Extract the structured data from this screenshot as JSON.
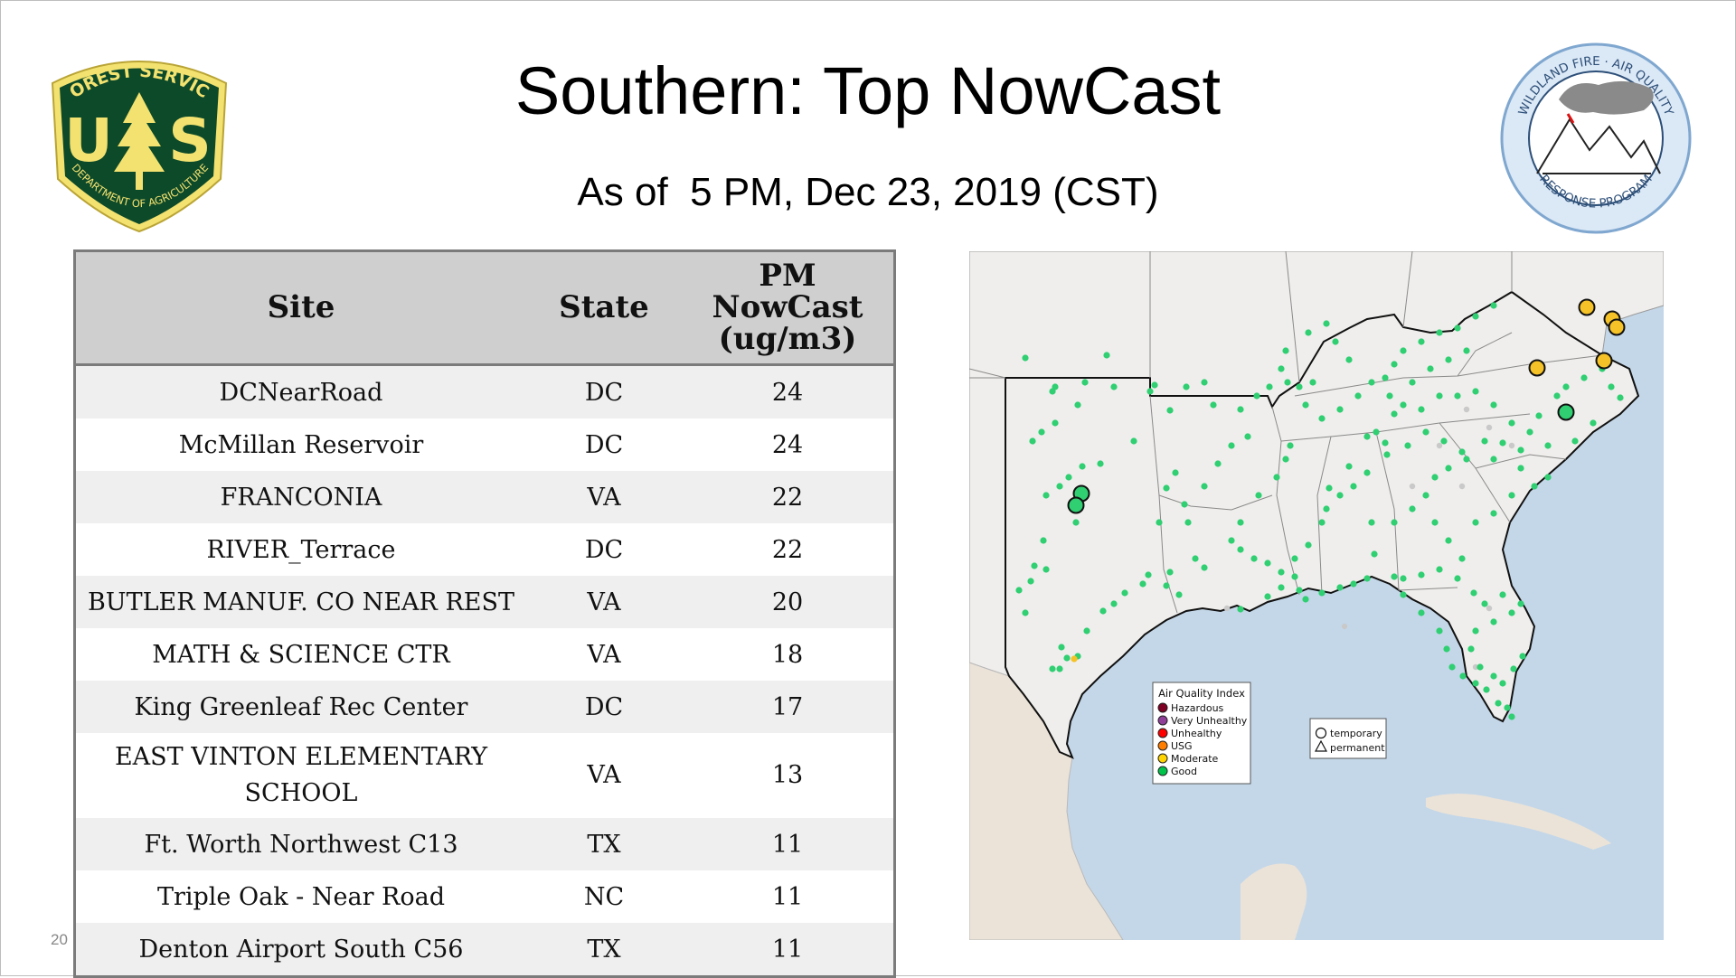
{
  "slide": {
    "title": "Southern: Top NowCast",
    "subtitle": "As of  5 PM, Dec 23, 2019 (CST)",
    "page_number": "20"
  },
  "logos": {
    "usfs": {
      "arc_top": "FOREST SERVICE",
      "letters_left": "U",
      "letters_right": "S",
      "arc_bottom": "DEPARTMENT OF AGRICULTURE",
      "colors": {
        "shield": "#0d4a2a",
        "gold": "#f3e26f"
      }
    },
    "wfaq": {
      "arc_top": "WILDLAND FIRE · AIR QUALITY",
      "arc_bottom": "RESPONSE PROGRAM",
      "colors": {
        "ring": "#9ec1e3",
        "text": "#2d4f78"
      }
    }
  },
  "table": {
    "headers": {
      "site": "Site",
      "state": "State",
      "pm_line1": "PM",
      "pm_line2": "NowCast",
      "pm_line3": "(ug/m3)"
    },
    "rows": [
      {
        "site": "DCNearRoad",
        "state": "DC",
        "value": "24"
      },
      {
        "site": "McMillan Reservoir",
        "state": "DC",
        "value": "24"
      },
      {
        "site": "FRANCONIA",
        "state": "VA",
        "value": "22"
      },
      {
        "site": "RIVER_Terrace",
        "state": "DC",
        "value": "22"
      },
      {
        "site": "BUTLER MANUF. CO NEAR REST",
        "state": "VA",
        "value": "20"
      },
      {
        "site": "MATH & SCIENCE CTR",
        "state": "VA",
        "value": "18"
      },
      {
        "site": "King Greenleaf Rec Center",
        "state": "DC",
        "value": "17"
      },
      {
        "site": "EAST VINTON ELEMENTARY",
        "site_line2": "SCHOOL",
        "state": "VA",
        "value": "13"
      },
      {
        "site": "Ft. Worth Northwest C13",
        "state": "TX",
        "value": "11"
      },
      {
        "site": "Triple Oak - Near Road",
        "state": "NC",
        "value": "11"
      },
      {
        "site": "Denton Airport South C56",
        "state": "TX",
        "value": "11"
      }
    ]
  },
  "map": {
    "legend_aqi": {
      "title": "Air Quality Index",
      "items": [
        {
          "label": "Hazardous",
          "color": "#7e0023"
        },
        {
          "label": "Very Unhealthy",
          "color": "#8f3f97"
        },
        {
          "label": "Unhealthy",
          "color": "#ff0000"
        },
        {
          "label": "USG",
          "color": "#ff7e00"
        },
        {
          "label": "Moderate",
          "color": "#ffd400"
        },
        {
          "label": "Good",
          "color": "#00c44a"
        }
      ]
    },
    "legend_type": {
      "temporary": "temporary",
      "permanent": "permanent"
    },
    "colors": {
      "ocean": "#c4d7e8",
      "land": "#efeeec",
      "good": "#2fcf72",
      "moderate": "#f5c227",
      "inactive": "#c9c9c9"
    }
  }
}
